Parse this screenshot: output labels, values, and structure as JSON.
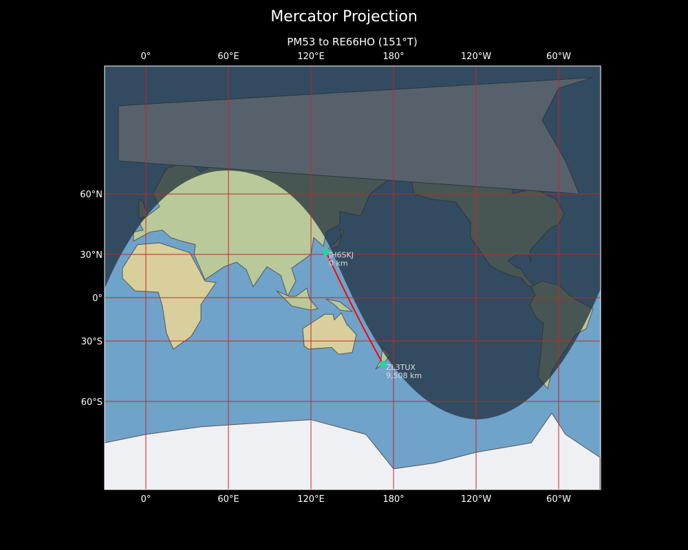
{
  "title": "Mercator Projection",
  "subtitle": "PM53 to RE66HO (151°T)",
  "map": {
    "projection": "Mercator",
    "lon_ticks": [
      "0°",
      "60°E",
      "120°E",
      "180°",
      "120°W",
      "60°W"
    ],
    "lat_ticks": [
      "60°N",
      "30°N",
      "0°",
      "30°S",
      "60°S"
    ],
    "grid_color": "#cc2222",
    "path_color": "#ff0000",
    "marker_color": "#1fd6a0",
    "night_shading": true
  },
  "stations": [
    {
      "call": "JH6SKJ",
      "distance": "0 km",
      "lon": 131,
      "lat": 31.5
    },
    {
      "call": "ZL3TUX",
      "distance": "9,508 km",
      "lon": 172.5,
      "lat": -43.5
    }
  ]
}
